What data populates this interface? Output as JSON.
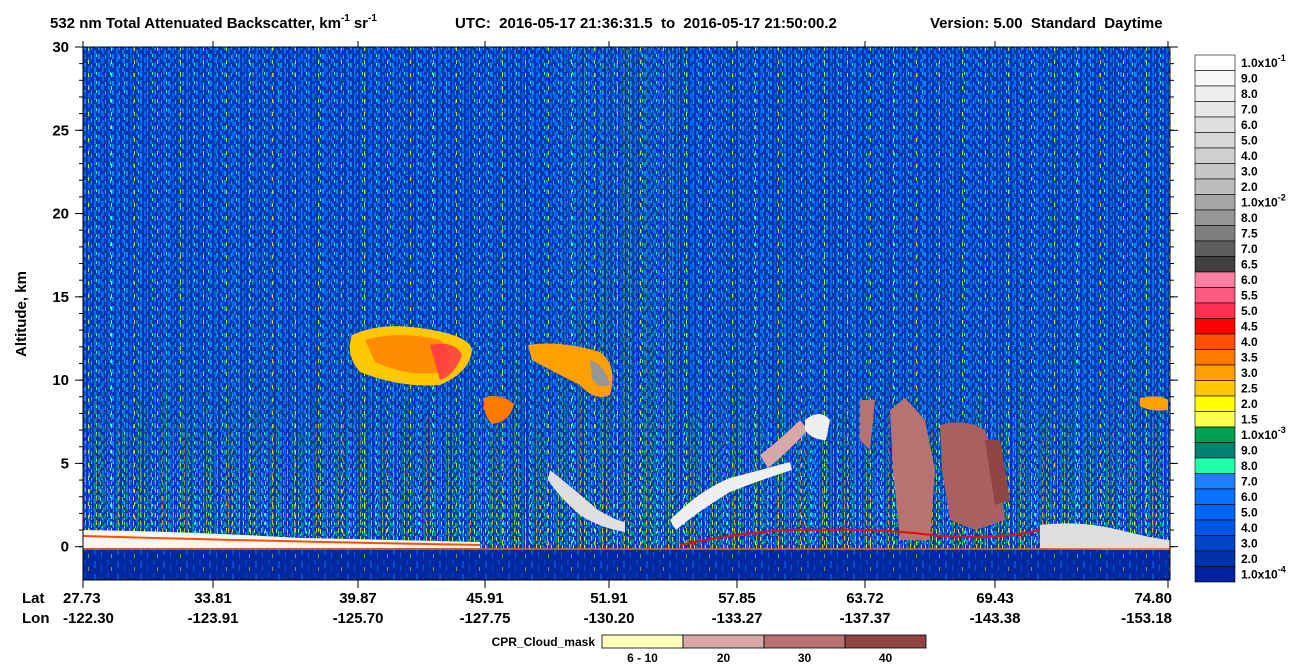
{
  "chart_data": {
    "type": "heatmap",
    "title_parts": [
      "532 nm Total Attenuated Backscatter, km",
      "-1",
      "sr",
      "-1"
    ],
    "utc": "UTC:  2016-05-17 21:36:31.5  to  2016-05-17 21:50:00.2",
    "version": "Version: 5.00  Standard  Daytime",
    "ylabel": "Altitude, km",
    "ylim": [
      -2,
      30
    ],
    "yticks": [
      0,
      5,
      10,
      15,
      20,
      25,
      30
    ],
    "x_row_labels": [
      "Lat",
      "Lon"
    ],
    "lat": [
      "27.73",
      "33.81",
      "39.87",
      "45.91",
      "51.91",
      "57.85",
      "63.72",
      "69.43",
      "74.80"
    ],
    "lon": [
      "-122.30",
      "-123.91",
      "-125.70",
      "-127.75",
      "-130.20",
      "-133.27",
      "-137.37",
      "-143.38",
      "-153.18"
    ],
    "colorbar": [
      {
        "label": "1.0x10",
        "exp": "-1",
        "color": "#ffffff"
      },
      {
        "label": "9.0",
        "color": "#f7f7f7"
      },
      {
        "label": "8.0",
        "color": "#efefef"
      },
      {
        "label": "7.0",
        "color": "#e7e7e7"
      },
      {
        "label": "6.0",
        "color": "#dfdfdf"
      },
      {
        "label": "5.0",
        "color": "#d7d7d7"
      },
      {
        "label": "4.0",
        "color": "#cfcfcf"
      },
      {
        "label": "3.0",
        "color": "#c7c7c7"
      },
      {
        "label": "2.0",
        "color": "#bdbdbd"
      },
      {
        "label": "1.0x10",
        "exp": "-2",
        "color": "#a6a6a6"
      },
      {
        "label": "8.0",
        "color": "#969696"
      },
      {
        "label": "7.5",
        "color": "#7e7e7e"
      },
      {
        "label": "7.0",
        "color": "#5e5e5e"
      },
      {
        "label": "6.5",
        "color": "#404040"
      },
      {
        "label": "6.0",
        "color": "#ff80a0"
      },
      {
        "label": "5.5",
        "color": "#ff5a80"
      },
      {
        "label": "5.0",
        "color": "#ff3050"
      },
      {
        "label": "4.5",
        "color": "#ff0000"
      },
      {
        "label": "4.0",
        "color": "#ff5000"
      },
      {
        "label": "3.5",
        "color": "#ff7800"
      },
      {
        "label": "3.0",
        "color": "#ffa000"
      },
      {
        "label": "2.5",
        "color": "#ffc800"
      },
      {
        "label": "2.0",
        "color": "#ffff00"
      },
      {
        "label": "1.5",
        "color": "#ffff50"
      },
      {
        "label": "1.0x10",
        "exp": "-3",
        "color": "#00a050"
      },
      {
        "label": "9.0",
        "color": "#008070"
      },
      {
        "label": "8.0",
        "color": "#20ffaa"
      },
      {
        "label": "7.0",
        "color": "#1a80ff"
      },
      {
        "label": "6.0",
        "color": "#0a70ff"
      },
      {
        "label": "5.0",
        "color": "#0064f5"
      },
      {
        "label": "4.0",
        "color": "#0055e6"
      },
      {
        "label": "3.0",
        "color": "#0045c8"
      },
      {
        "label": "2.0",
        "color": "#0032a8"
      },
      {
        "label": "1.0x10",
        "exp": "-4",
        "color": "#0022a0"
      }
    ],
    "cloud_mask": {
      "title": "CPR_Cloud_mask",
      "entries": [
        {
          "label": "6 - 10",
          "color": "#ffffc0"
        },
        {
          "label": "20",
          "color": "#d8a8a8"
        },
        {
          "label": "30",
          "color": "#b87272"
        },
        {
          "label": "40",
          "color": "#904444"
        }
      ]
    }
  }
}
